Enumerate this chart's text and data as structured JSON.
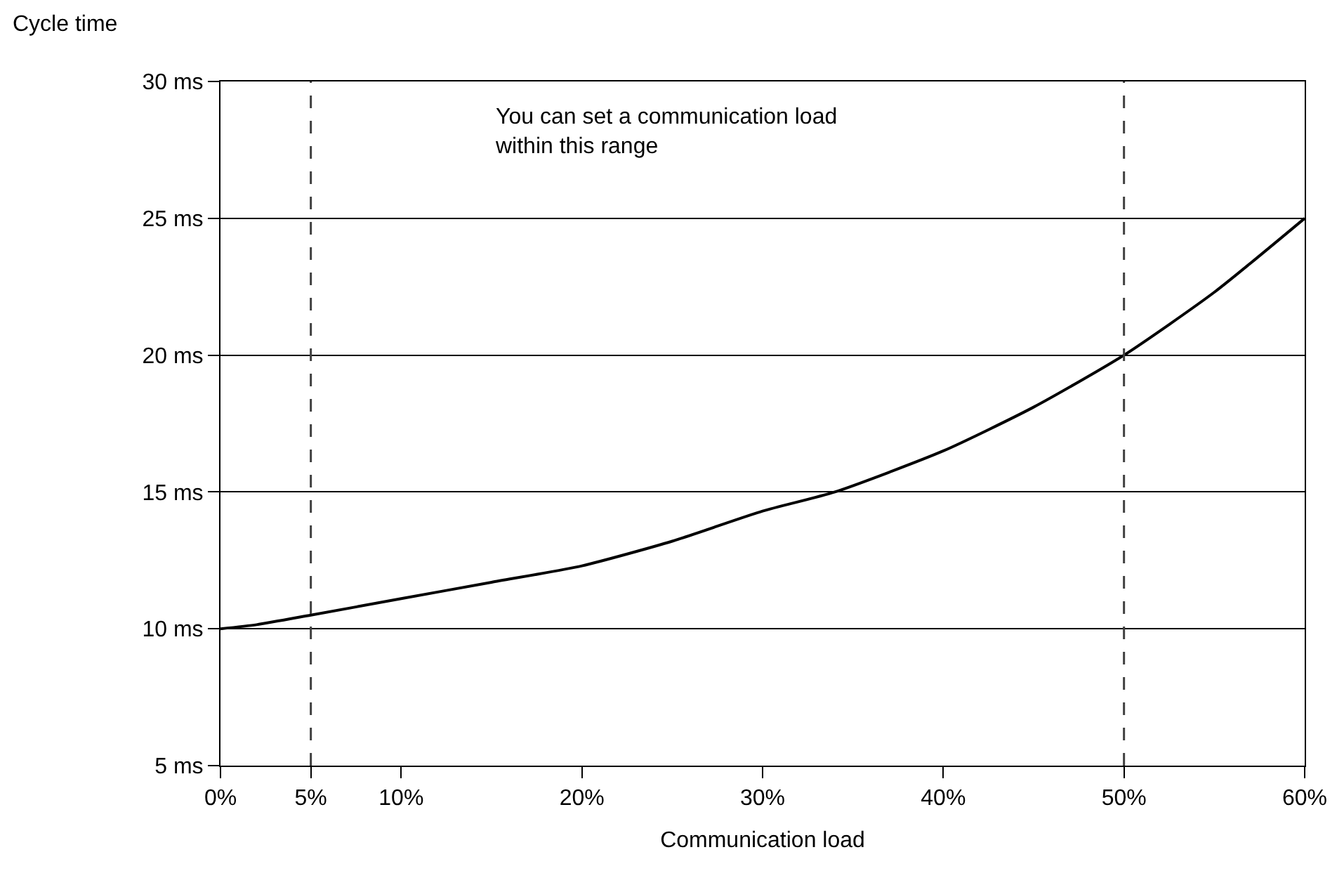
{
  "chart_data": {
    "type": "line",
    "xlabel": "Communication load",
    "ylabel": "Cycle time",
    "x": [
      0,
      2,
      5,
      10,
      15,
      20,
      25,
      30,
      34,
      40,
      45,
      50,
      55,
      60
    ],
    "series": [
      {
        "color": "#000000",
        "values": [
          10,
          10.15,
          10.5,
          11.1,
          11.7,
          12.3,
          13.2,
          14.3,
          15,
          16.5,
          18.1,
          20,
          22.3,
          25
        ]
      }
    ],
    "xlim": [
      0,
      60
    ],
    "ylim": [
      5,
      30
    ],
    "xticks": [
      {
        "value": 0,
        "label": "0%"
      },
      {
        "value": 5,
        "label": "5%"
      },
      {
        "value": 10,
        "label": "10%"
      },
      {
        "value": 20,
        "label": "20%"
      },
      {
        "value": 30,
        "label": "30%"
      },
      {
        "value": 40,
        "label": "40%"
      },
      {
        "value": 50,
        "label": "50%"
      },
      {
        "value": 60,
        "label": "60%"
      }
    ],
    "yticks": [
      {
        "value": 5,
        "label": "5 ms"
      },
      {
        "value": 10,
        "label": "10 ms"
      },
      {
        "value": 15,
        "label": "15 ms"
      },
      {
        "value": 20,
        "label": "20 ms"
      },
      {
        "value": 25,
        "label": "25 ms"
      },
      {
        "value": 30,
        "label": "30 ms"
      }
    ],
    "ref_lines": [
      {
        "axis": "x",
        "value": 5,
        "color": "#404040",
        "line_style": "dashed"
      },
      {
        "axis": "x",
        "value": 50,
        "color": "#404040",
        "line_style": "dashed"
      }
    ],
    "annotations": [
      "You can set a communication load\nwithin this range"
    ],
    "grid": "y",
    "legend": false,
    "marker": "none",
    "line_style": "solid"
  }
}
